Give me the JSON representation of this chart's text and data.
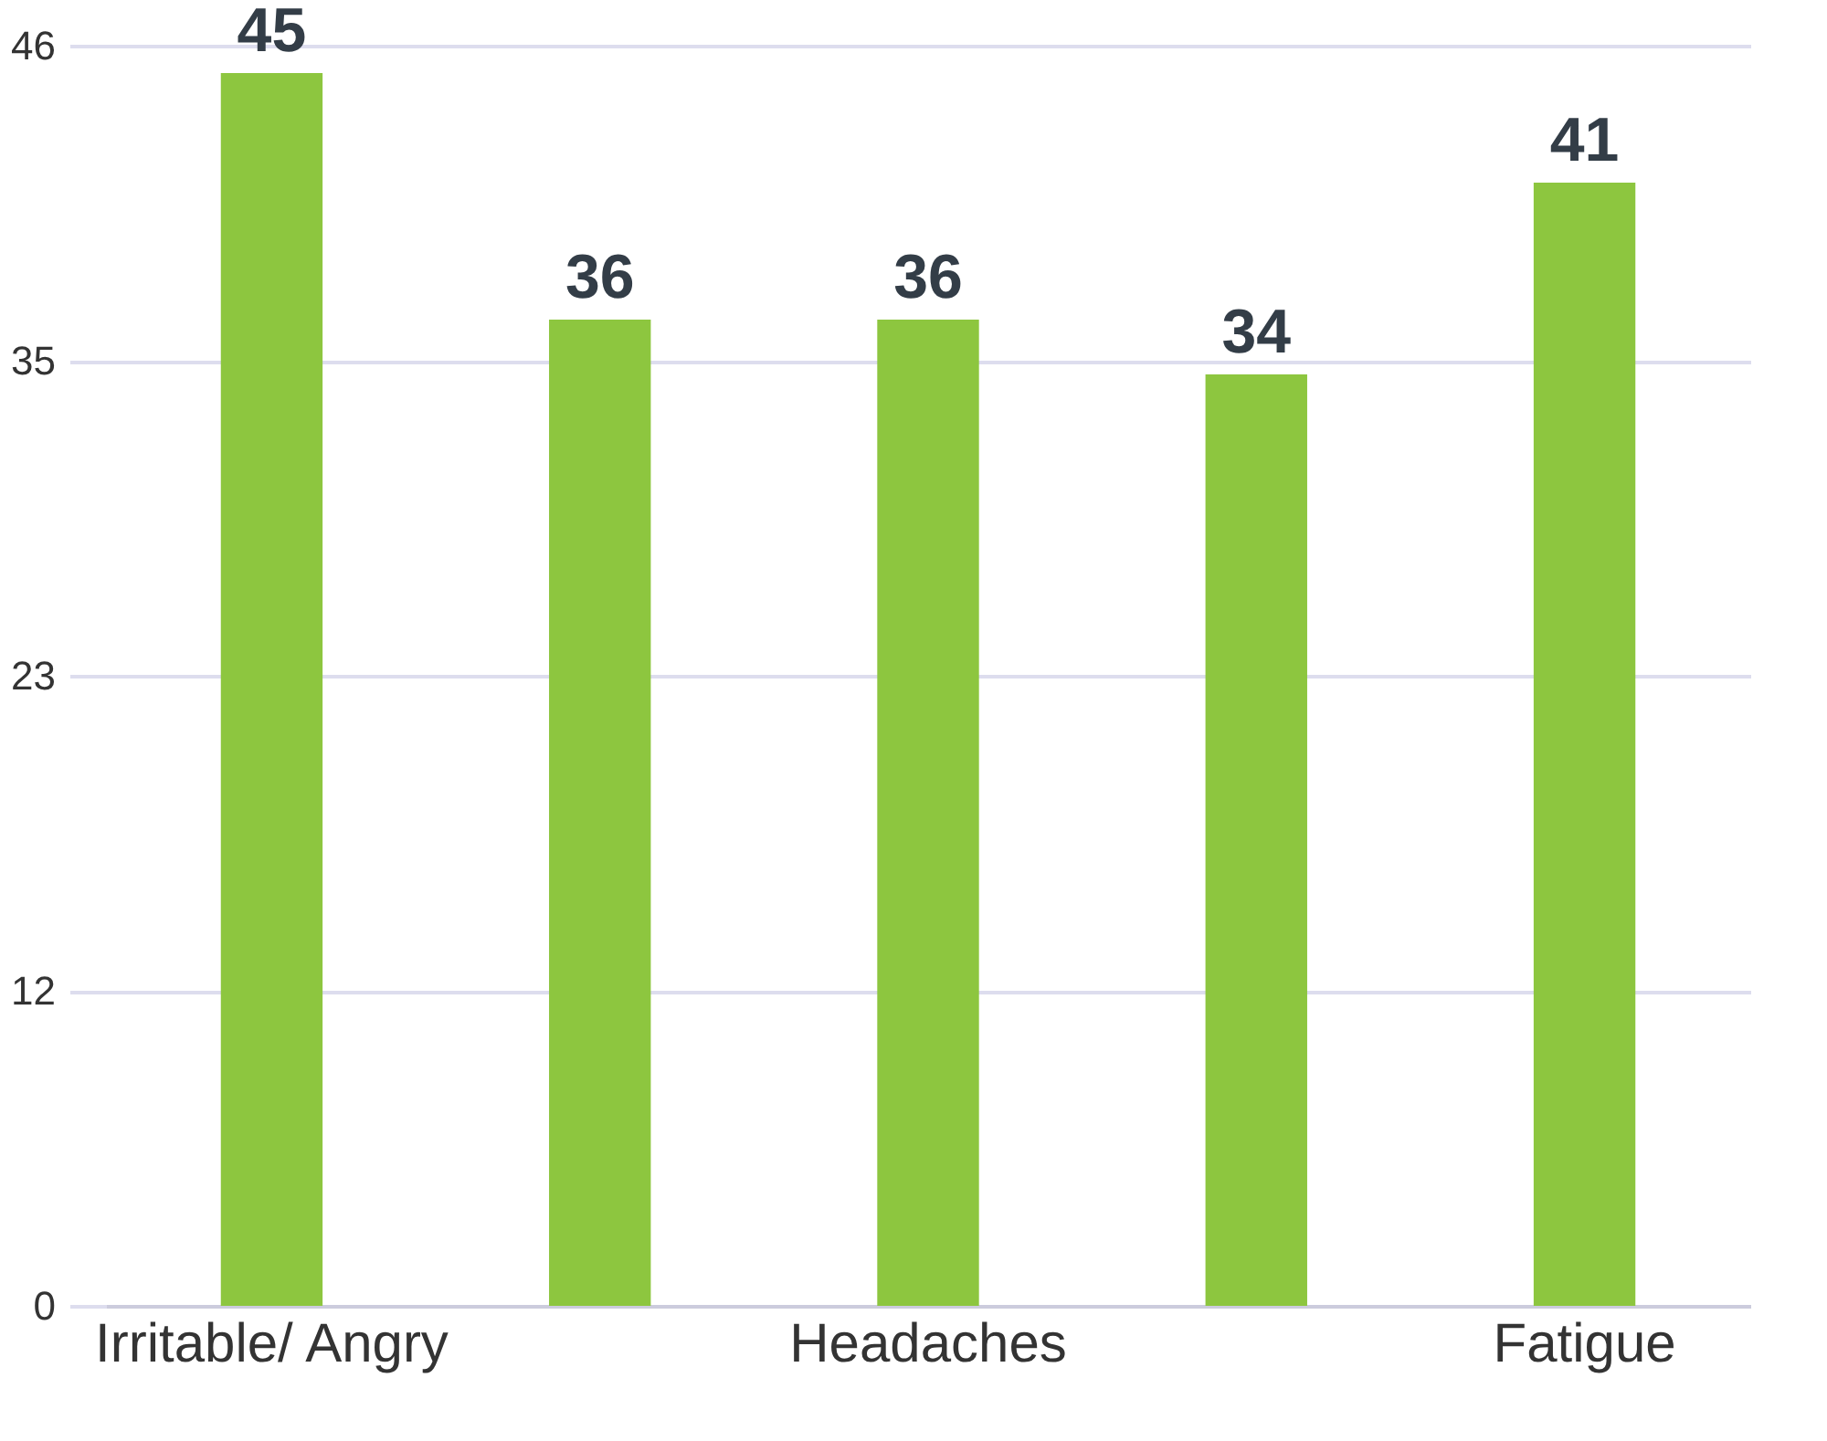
{
  "chart_data": {
    "type": "bar",
    "categories": [
      "Irritable/ Angry",
      null,
      "Headaches",
      null,
      "Fatigue"
    ],
    "values": [
      45,
      36,
      36,
      34,
      41
    ],
    "color": "#8dc63f",
    "ylim": [
      0,
      46
    ],
    "yticks": [
      0,
      {
        "value": 11.5,
        "label": "12"
      },
      23,
      {
        "value": 34.5,
        "label": "35"
      },
      46
    ],
    "grid": "y",
    "data_labels": true
  }
}
